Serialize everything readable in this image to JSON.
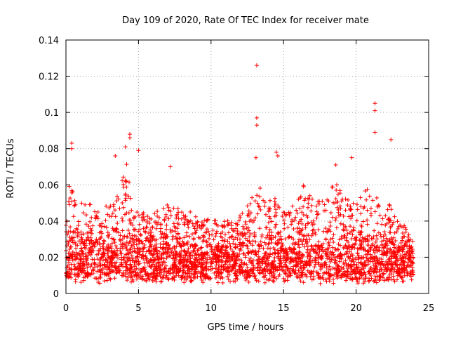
{
  "chart_data": {
    "type": "scatter",
    "title": "Day 109 of 2020, Rate Of TEC Index for receiver mate",
    "xlabel": "GPS time / hours",
    "ylabel": "ROTI / TECUs",
    "xlim": [
      0,
      25
    ],
    "ylim": [
      0,
      0.14
    ],
    "x_ticks": [
      0,
      5,
      10,
      15,
      20,
      25
    ],
    "x_tick_labels": [
      "0",
      "5",
      "10",
      "15",
      "20",
      "25"
    ],
    "y_ticks": [
      0,
      0.02,
      0.04,
      0.06,
      0.08,
      0.1,
      0.12,
      0.14
    ],
    "y_tick_labels": [
      "0",
      "0.02",
      "0.04",
      "0.06",
      "0.08",
      "0.1",
      "0.12",
      "0.14"
    ],
    "grid": true,
    "marker": "+",
    "series": [
      {
        "name": "ROTI",
        "color": "#ff0000",
        "envelope": [
          [
            0.0,
            0.045
          ],
          [
            0.3,
            0.065
          ],
          [
            0.5,
            0.075
          ],
          [
            0.8,
            0.055
          ],
          [
            1.2,
            0.05
          ],
          [
            1.7,
            0.052
          ],
          [
            2.2,
            0.045
          ],
          [
            2.6,
            0.05
          ],
          [
            3.0,
            0.048
          ],
          [
            3.4,
            0.052
          ],
          [
            3.8,
            0.06
          ],
          [
            4.2,
            0.075
          ],
          [
            4.5,
            0.055
          ],
          [
            5.0,
            0.045
          ],
          [
            6.0,
            0.045
          ],
          [
            7.0,
            0.05
          ],
          [
            8.0,
            0.046
          ],
          [
            9.0,
            0.045
          ],
          [
            10.0,
            0.042
          ],
          [
            11.0,
            0.04
          ],
          [
            12.0,
            0.044
          ],
          [
            12.7,
            0.05
          ],
          [
            13.2,
            0.062
          ],
          [
            13.8,
            0.05
          ],
          [
            14.4,
            0.055
          ],
          [
            15.0,
            0.045
          ],
          [
            15.8,
            0.05
          ],
          [
            16.5,
            0.062
          ],
          [
            17.2,
            0.05
          ],
          [
            18.0,
            0.058
          ],
          [
            18.6,
            0.062
          ],
          [
            19.2,
            0.052
          ],
          [
            19.8,
            0.055
          ],
          [
            20.4,
            0.056
          ],
          [
            21.0,
            0.06
          ],
          [
            21.5,
            0.052
          ],
          [
            22.2,
            0.05
          ],
          [
            23.0,
            0.042
          ],
          [
            23.9,
            0.03
          ]
        ],
        "outliers": [
          {
            "x": 13.15,
            "y": 0.126
          },
          {
            "x": 13.15,
            "y": 0.097
          },
          {
            "x": 13.15,
            "y": 0.093
          },
          {
            "x": 21.3,
            "y": 0.105
          },
          {
            "x": 21.3,
            "y": 0.101
          },
          {
            "x": 21.3,
            "y": 0.089
          },
          {
            "x": 22.4,
            "y": 0.085
          },
          {
            "x": 19.7,
            "y": 0.075
          },
          {
            "x": 4.4,
            "y": 0.088
          },
          {
            "x": 4.4,
            "y": 0.086
          },
          {
            "x": 4.1,
            "y": 0.081
          },
          {
            "x": 0.4,
            "y": 0.083
          },
          {
            "x": 0.4,
            "y": 0.08
          },
          {
            "x": 14.5,
            "y": 0.078
          },
          {
            "x": 14.6,
            "y": 0.076
          },
          {
            "x": 5.0,
            "y": 0.079
          },
          {
            "x": 3.4,
            "y": 0.076
          },
          {
            "x": 7.2,
            "y": 0.07
          },
          {
            "x": 13.1,
            "y": 0.075
          },
          {
            "x": 18.6,
            "y": 0.071
          }
        ]
      }
    ]
  }
}
